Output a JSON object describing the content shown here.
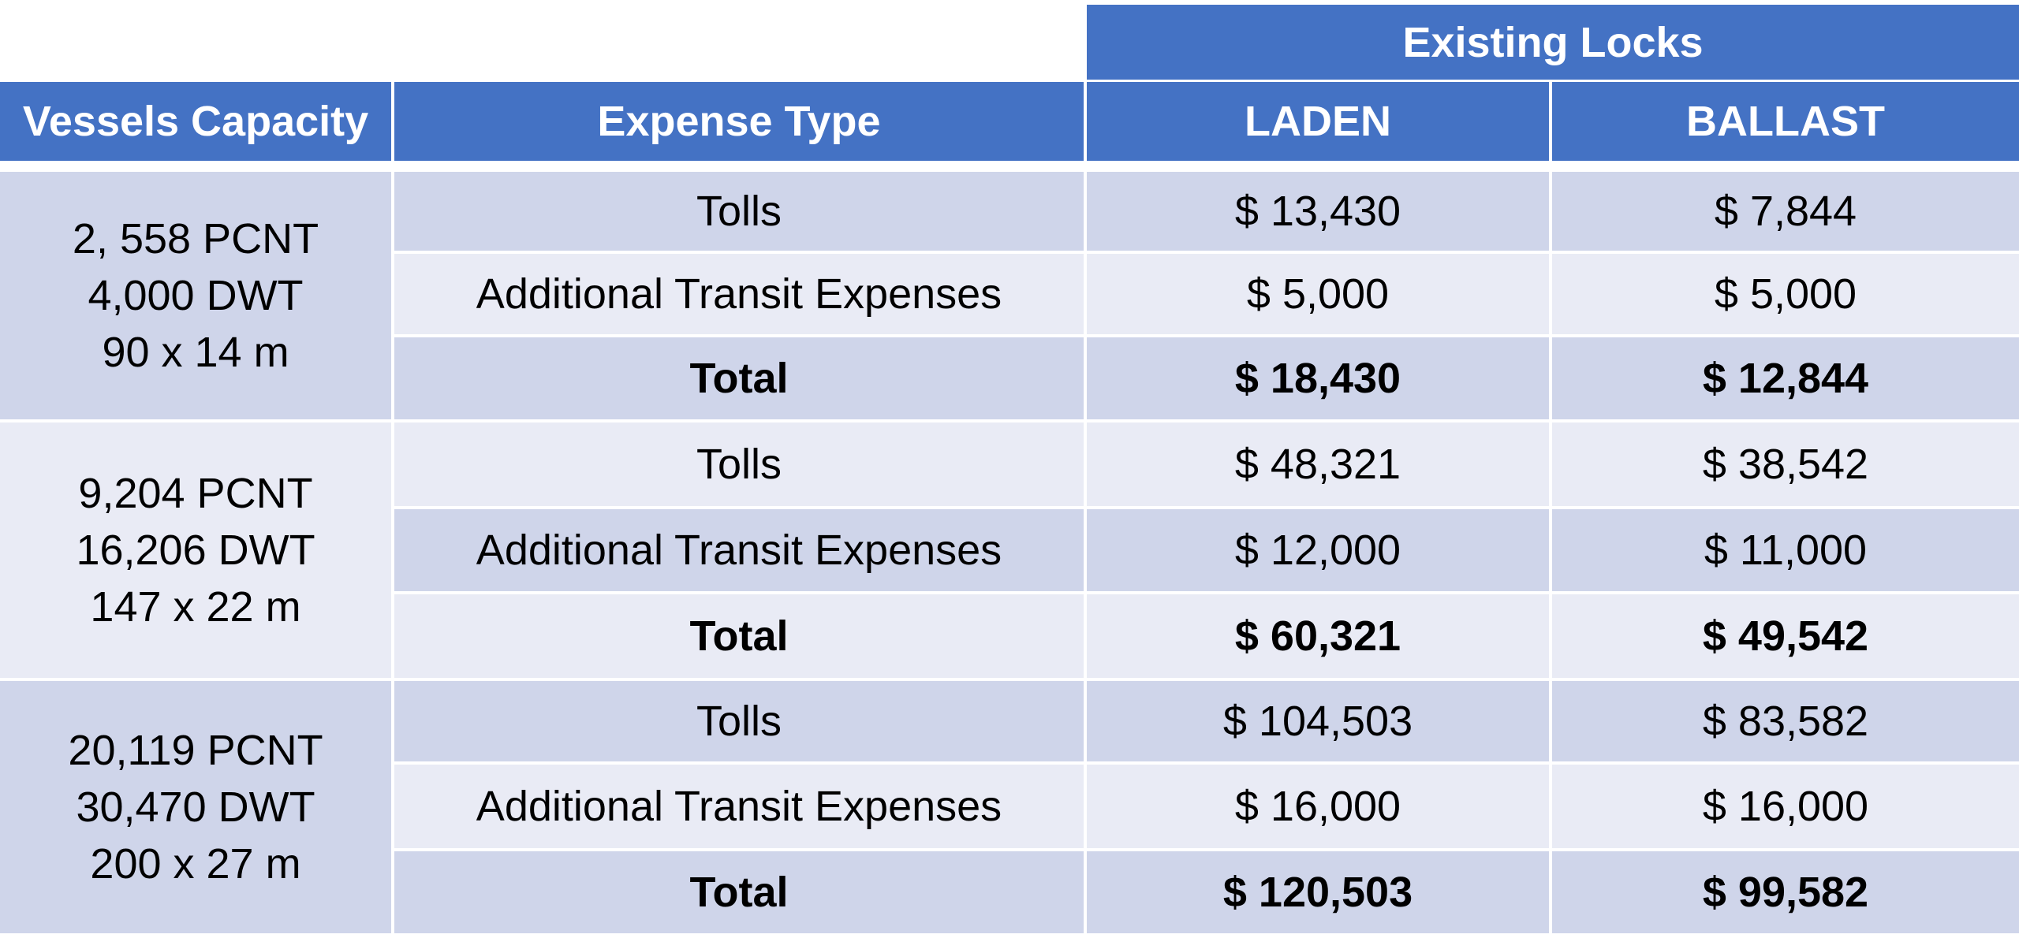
{
  "table": {
    "group_header": "Existing Locks",
    "headers": {
      "vessels_capacity": "Vessels Capacity",
      "expense_type": "Expense Type",
      "laden": "LADEN",
      "ballast": "BALLAST"
    },
    "groups": [
      {
        "vessel": [
          "2, 558 PCNT",
          "4,000 DWT",
          "90 x 14 m"
        ],
        "rows": [
          {
            "expense": "Tolls",
            "laden": "$ 13,430",
            "ballast": "$ 7,844"
          },
          {
            "expense": "Additional Transit Expenses",
            "laden": "$ 5,000",
            "ballast": "$ 5,000"
          },
          {
            "expense": "Total",
            "laden": "$ 18,430",
            "ballast": "$ 12,844"
          }
        ]
      },
      {
        "vessel": [
          "9,204 PCNT",
          "16,206 DWT",
          "147 x 22 m"
        ],
        "rows": [
          {
            "expense": "Tolls",
            "laden": "$ 48,321",
            "ballast": "$ 38,542"
          },
          {
            "expense": "Additional Transit Expenses",
            "laden": "$ 12,000",
            "ballast": "$ 11,000"
          },
          {
            "expense": "Total",
            "laden": "$ 60,321",
            "ballast": "$ 49,542"
          }
        ]
      },
      {
        "vessel": [
          "20,119 PCNT",
          "30,470 DWT",
          "200 x 27 m"
        ],
        "rows": [
          {
            "expense": "Tolls",
            "laden": "$ 104,503",
            "ballast": "$ 83,582"
          },
          {
            "expense": "Additional Transit Expenses",
            "laden": "$ 16,000",
            "ballast": "$ 16,000"
          },
          {
            "expense": "Total",
            "laden": "$ 120,503",
            "ballast": "$ 99,582"
          }
        ]
      }
    ]
  },
  "colors": {
    "header_blue": "#4472c4",
    "band_dark": "#cfd5ea",
    "band_light": "#e9ebf5"
  }
}
